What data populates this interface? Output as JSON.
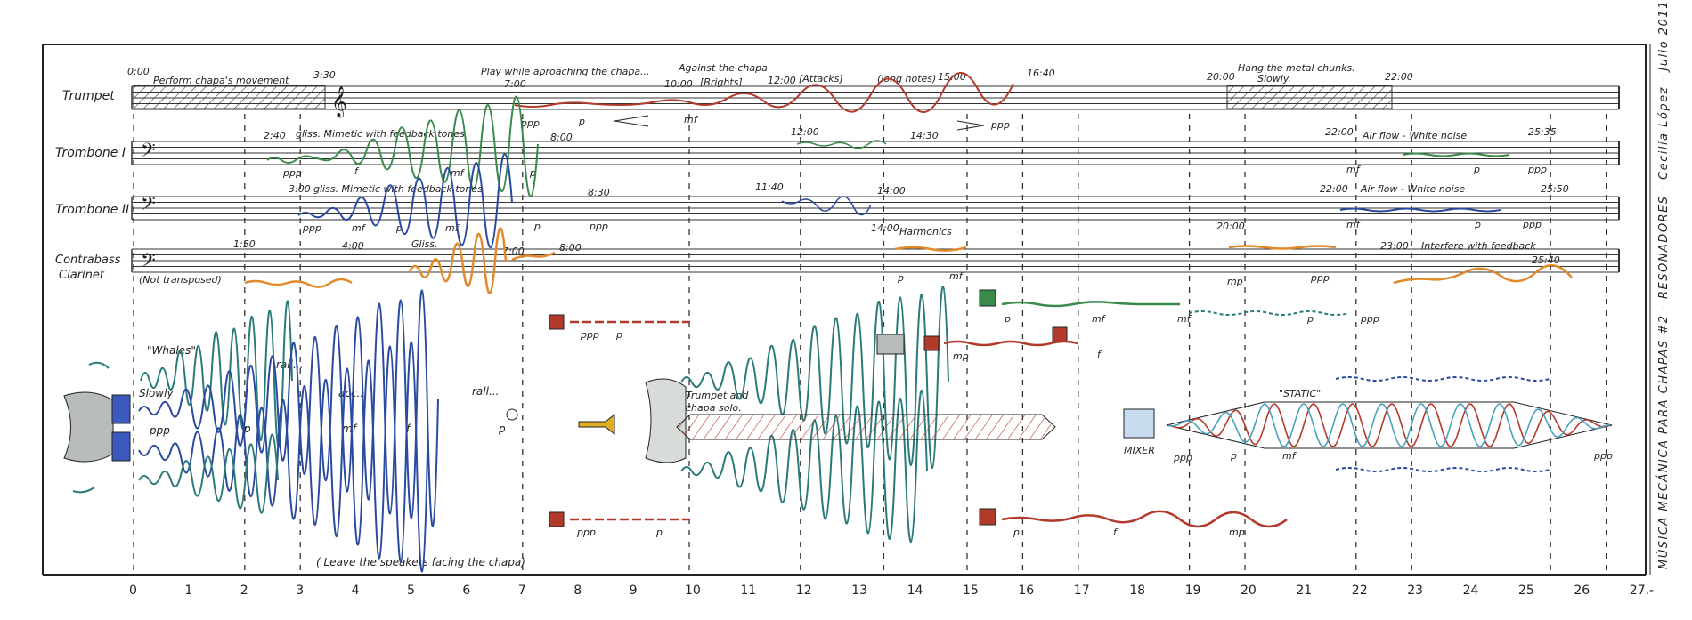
{
  "colors": {
    "ink": "#222222",
    "red": "#b23a2a",
    "orange": "#e08a2a",
    "blue": "#2a4aa0",
    "teal": "#2a7a7a",
    "green": "#3a8a4a",
    "speaker": "#3a5ac0",
    "trumpet": "#e0b020",
    "grey": "#b8bcb8"
  },
  "instruments": [
    {
      "name": "Trumpet"
    },
    {
      "name": "Trombone I"
    },
    {
      "name": "Trombone II"
    },
    {
      "name": "Contrabass\nClarinet"
    }
  ],
  "timeline": [
    "0",
    "1",
    "2",
    "3",
    "4",
    "5",
    "6",
    "7",
    "8",
    "9",
    "10",
    "11",
    "12",
    "13",
    "14",
    "15",
    "16",
    "17",
    "18",
    "19",
    "20",
    "21",
    "22",
    "23",
    "24",
    "25",
    "26",
    "27.-"
  ],
  "trumpet": {
    "times": [
      "0:00",
      "3:30",
      "7:00",
      "10:00",
      "12:00",
      "15:00",
      "16:40",
      "20:00",
      "22:00"
    ],
    "notes": [
      "Perform chapa's movement",
      "Play while aproaching the chapa...",
      "Against the chapa",
      "[Brights]",
      "[Attacks]",
      "(long notes)",
      "Hang the metal chunks.",
      "Slowly."
    ],
    "dynamics": [
      "ppp",
      "p",
      "mf",
      "ppp"
    ]
  },
  "trombone1": {
    "times": [
      "2:40",
      "8:00",
      "12:00",
      "14:30",
      "22:00",
      "25:35"
    ],
    "notes": [
      "gliss. Mimetic with feedback tones",
      "Air flow - White noise"
    ],
    "dynamics": [
      "ppp",
      "f",
      "mf",
      "p",
      "mf",
      "p",
      "ppp"
    ]
  },
  "trombone2": {
    "times": [
      "3:00",
      "8:30",
      "11:40",
      "14:00",
      "22:00",
      "25:50"
    ],
    "notes": [
      "gliss. Mimetic with feedback tones",
      "Air flow - White noise"
    ],
    "dynamics": [
      "ppp",
      "mf",
      "p",
      "mf",
      "p",
      "ppp",
      "mf",
      "p",
      "ppp"
    ]
  },
  "clarinet": {
    "times": [
      "1:50",
      "4:00",
      "7:00",
      "8:00",
      "14:00",
      "20:00",
      "23:00",
      "25:40"
    ],
    "notes": [
      "(Not transposed)",
      "Gliss.",
      "Harmonics",
      "Interfere with feedback"
    ],
    "dynamics": [
      "p",
      "mf",
      "mp",
      "ppp"
    ]
  },
  "electronics": {
    "whales": "\"Whales\"",
    "slowly": "Slowly",
    "rall1": "rall...",
    "acc": "acc...",
    "rall2": "rall...",
    "dyn_row": [
      "ppp",
      "p",
      "mf",
      "f",
      "p"
    ],
    "ppp_p1": [
      "ppp",
      "p"
    ],
    "ppp_p2": [
      "ppp",
      "p"
    ],
    "solo": "Trumpet and\nchapa solo.",
    "static": "\"STATIC\"",
    "mixer": "MIXER",
    "mixer_dyn": [
      "ppp",
      "p",
      "mf"
    ],
    "end_ppp": "ppp",
    "leave": "( Leave the speakers facing the chapa)",
    "mp": "mp",
    "f_mid": "f",
    "lower_dyn": [
      "p",
      "f",
      "mp"
    ],
    "upper_dyn": [
      "p",
      "mf",
      "mf",
      "p",
      "ppp"
    ]
  },
  "side_title": "MÚSICA MECÁNICA PARA CHAPAS #2 - RESONADORES - Cecilia López - Julio 2011.-"
}
